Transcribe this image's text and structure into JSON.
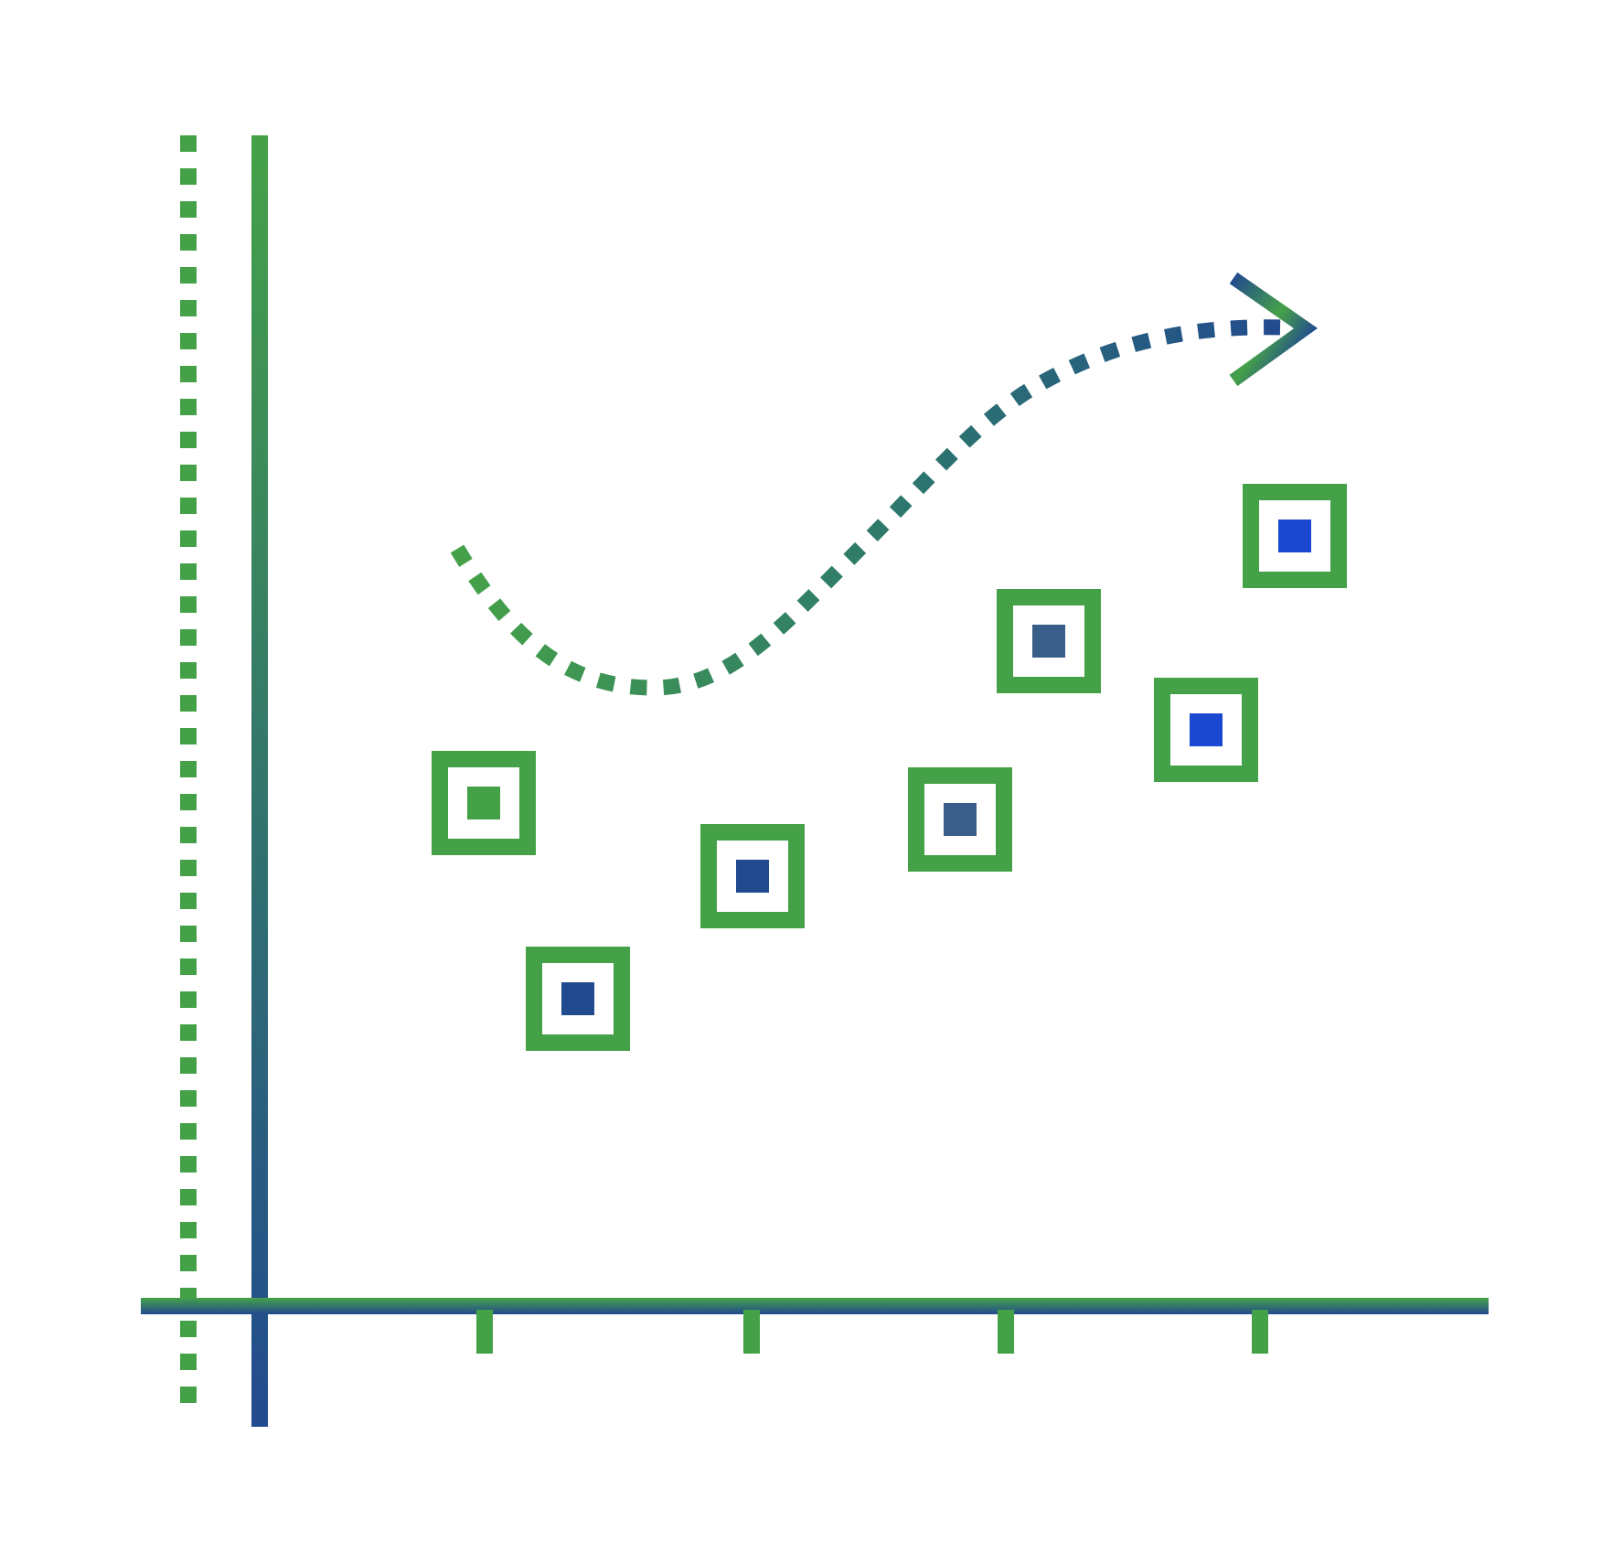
{
  "diagram": {
    "kind": "scatter-trend-icon",
    "colors": {
      "green": "#45a148",
      "navy": "#224a8f",
      "slate": "#3a5e8a",
      "bright_blue": "#1a48d0",
      "teal": "#2e6e75",
      "background": "#ffffff"
    },
    "icons": [
      "trend-arrow-icon"
    ],
    "markers": [
      {
        "id": "marker-1",
        "fill": "green"
      },
      {
        "id": "marker-2",
        "fill": "navy"
      },
      {
        "id": "marker-3",
        "fill": "navy"
      },
      {
        "id": "marker-4",
        "fill": "slate"
      },
      {
        "id": "marker-5",
        "fill": "slate"
      },
      {
        "id": "marker-6",
        "fill": "bright_blue"
      },
      {
        "id": "marker-7",
        "fill": "bright_blue"
      }
    ],
    "x_tick_count": 4
  }
}
